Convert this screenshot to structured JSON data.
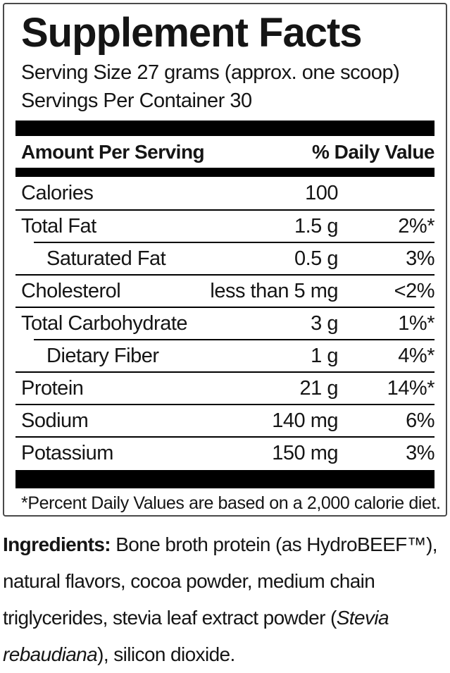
{
  "title": "Supplement Facts",
  "serving": {
    "size_line": "Serving Size 27 grams (approx. one scoop)",
    "per_container_line": "Servings Per Container 30"
  },
  "table": {
    "header": {
      "amount_label": "Amount Per Serving",
      "dv_label": "% Daily Value"
    },
    "rows": [
      {
        "label": "Calories",
        "amount": "100",
        "dv": ""
      },
      {
        "label": "Total Fat",
        "amount": "1.5 g",
        "dv": "2%*"
      },
      {
        "label": "Saturated Fat",
        "amount": "0.5 g",
        "dv": "3%"
      },
      {
        "label": "Cholesterol",
        "amount": "less than 5 mg",
        "dv": "<2%"
      },
      {
        "label": "Total Carbohydrate",
        "amount": "3 g",
        "dv": "1%*"
      },
      {
        "label": "Dietary Fiber",
        "amount": "1 g",
        "dv": "4%*"
      },
      {
        "label": "Protein",
        "amount": "21 g",
        "dv": "14%*"
      },
      {
        "label": "Sodium",
        "amount": "140 mg",
        "dv": "6%"
      },
      {
        "label": "Potassium",
        "amount": "150 mg",
        "dv": "3%"
      }
    ],
    "footnote": "*Percent Daily Values are based on a 2,000 calorie diet."
  },
  "ingredients": {
    "segments": [
      {
        "text": "Ingredients:"
      },
      {
        "text": " Bone broth protein (as HydroBEEF™), natural flavors, cocoa powder, medium chain triglycerides, stevia leaf extract powder ("
      },
      {
        "text": "Stevia rebaudiana"
      },
      {
        "text": "), silicon dioxide."
      }
    ]
  },
  "colors": {
    "text": "#151515",
    "bar": "#000000",
    "border": "#4a4a4a",
    "background": "#ffffff"
  }
}
